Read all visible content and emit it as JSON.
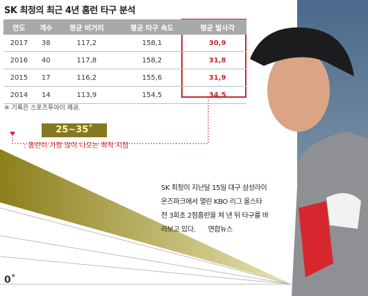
{
  "header": {
    "title": "SK 최정의 최근 4년 홈런 타구 분석"
  },
  "table": {
    "columns": [
      "연도",
      "개수",
      "평균 비거리",
      "평균 타구 속도",
      "평균 발사각"
    ],
    "rows": [
      [
        "2017",
        "38",
        "117,2",
        "158,1",
        "30,9"
      ],
      [
        "2016",
        "40",
        "117,8",
        "158,2",
        "31,8"
      ],
      [
        "2015",
        "17",
        "116,2",
        "155,6",
        "31,9"
      ],
      [
        "2014",
        "14",
        "113,9",
        "154,5",
        "34,5"
      ]
    ]
  },
  "note": "※ 기록은 스포츠투아이 제공.",
  "angle": {
    "range": "25~35˚",
    "annotation": ": 홈런이 가장 많이 나오는 최적 지점",
    "zero": "0˚"
  },
  "caption": {
    "lines": [
      "SK 최정이 지난달 15일 대구 삼성라이",
      "온즈파크에서 열린 KBO 리그 올스타",
      "전 3회초 2점홈런을 쳐 낸 뒤 타구를 바",
      "라보고 있다."
    ],
    "credit": "연합뉴스"
  }
}
